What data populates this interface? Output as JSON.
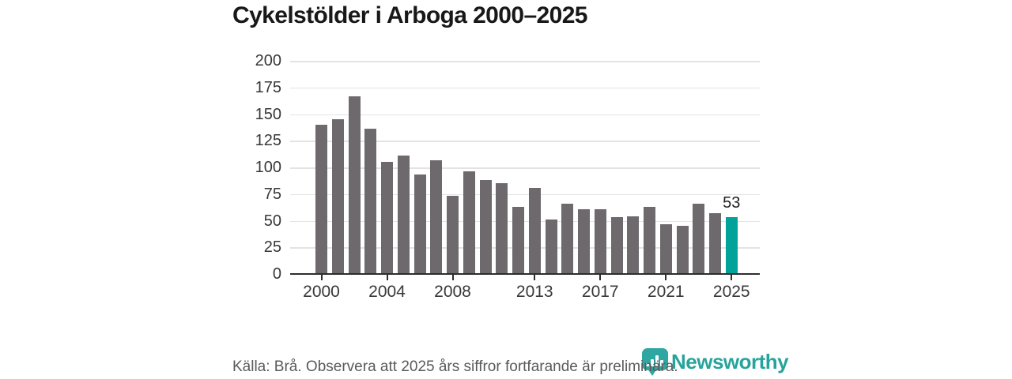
{
  "title": "Cykelstölder i Arboga 2000–2025",
  "chart_data": {
    "type": "bar",
    "title": "Cykelstölder i Arboga 2000–2025",
    "x": [
      2000,
      2001,
      2002,
      2003,
      2004,
      2005,
      2006,
      2007,
      2008,
      2009,
      2010,
      2011,
      2012,
      2013,
      2014,
      2015,
      2016,
      2017,
      2018,
      2019,
      2020,
      2021,
      2022,
      2023,
      2024,
      2025
    ],
    "values": [
      140,
      145,
      167,
      136,
      105,
      111,
      93,
      107,
      73,
      96,
      88,
      85,
      63,
      81,
      51,
      66,
      61,
      61,
      53,
      54,
      63,
      47,
      45,
      66,
      57,
      53
    ],
    "ylim": [
      0,
      200
    ],
    "y_ticks": [
      0,
      25,
      50,
      75,
      100,
      125,
      150,
      175,
      200
    ],
    "x_tick_labels": [
      "2000",
      "2004",
      "2008",
      "2013",
      "2017",
      "2021",
      "2025"
    ],
    "grid": "horizontal",
    "legend": "none",
    "bar_color": "#6d696d",
    "highlight_year": 2025,
    "highlight_color": "#00a29a",
    "highlight_value_label": "53"
  },
  "footer": {
    "source_note": "Källa: Brå. Observera att 2025 års siffror fortfarande är preliminära."
  },
  "branding": {
    "wordmark": "Newsworthy",
    "logo_icon": "newsworthy-chart-pin-icon",
    "brand_color": "#2ea6a1",
    "wordmark_color": "#26a49c"
  }
}
